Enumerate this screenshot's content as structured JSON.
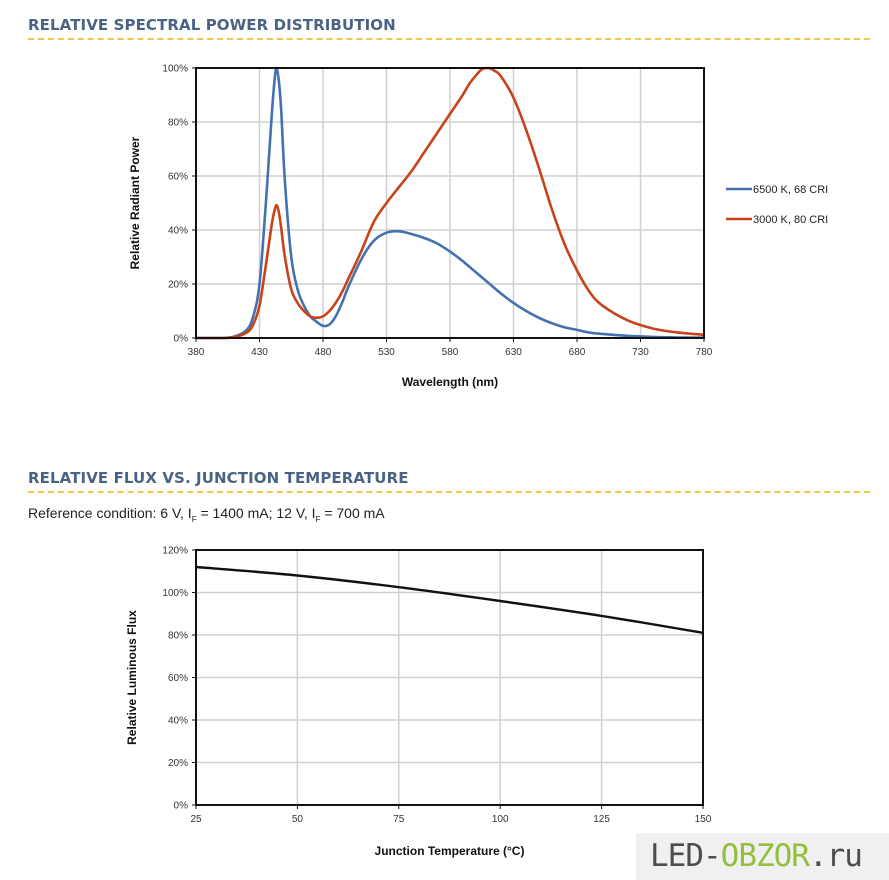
{
  "sections": {
    "spectral_title": "RELATIVE SPECTRAL POWER DISTRIBUTION",
    "flux_title": "RELATIVE FLUX VS. JUNCTION TEMPERATURE",
    "reference_condition": {
      "prefix": "Reference condition: 6 V, I",
      "sub1": "F",
      "middle": " = 1400 mA; 12 V, I",
      "sub2": "F",
      "suffix": " = 700 mA"
    }
  },
  "watermark": {
    "part1": "LED-",
    "part2": "OBZOR",
    "part3": ".ru",
    "accent_color": "#94bf3e"
  },
  "chart_data": [
    {
      "type": "line",
      "title": "RELATIVE SPECTRAL POWER DISTRIBUTION",
      "xlabel": "Wavelength (nm)",
      "ylabel": "Relative Radiant Power",
      "xlim": [
        380,
        780
      ],
      "ylim": [
        0,
        100
      ],
      "x_ticks": [
        "380",
        "430",
        "480",
        "530",
        "580",
        "630",
        "680",
        "730",
        "780"
      ],
      "y_ticks": [
        "0%",
        "20%",
        "40%",
        "60%",
        "80%",
        "100%"
      ],
      "grid": true,
      "legend_position": "right",
      "series": [
        {
          "name": "6500 K, 68 CRI",
          "color": "#4472b0",
          "x": [
            380,
            400,
            410,
            420,
            425,
            430,
            435,
            440,
            443,
            445,
            447,
            450,
            455,
            460,
            465,
            470,
            475,
            480,
            485,
            490,
            495,
            500,
            510,
            520,
            530,
            540,
            550,
            560,
            570,
            580,
            590,
            600,
            610,
            620,
            630,
            640,
            650,
            660,
            670,
            680,
            690,
            700,
            720,
            740,
            760,
            780
          ],
          "values": [
            0,
            0,
            0.5,
            3,
            8,
            20,
            50,
            85,
            100,
            96,
            85,
            58,
            30,
            18,
            12,
            8,
            6,
            4.5,
            5,
            8,
            13,
            19,
            29,
            36,
            39,
            39.5,
            38.5,
            37,
            35,
            32,
            28.5,
            24.5,
            20.5,
            16.5,
            13,
            10,
            7.5,
            5.5,
            4,
            3,
            2,
            1.5,
            0.8,
            0.4,
            0.2,
            0.1
          ]
        },
        {
          "name": "3000 K, 80 CRI",
          "color": "#c8431a",
          "x": [
            380,
            400,
            410,
            420,
            425,
            430,
            435,
            440,
            443,
            445,
            447,
            450,
            455,
            460,
            465,
            470,
            475,
            480,
            485,
            490,
            495,
            500,
            510,
            520,
            530,
            540,
            550,
            560,
            570,
            580,
            590,
            595,
            600,
            605,
            610,
            615,
            620,
            630,
            640,
            650,
            660,
            670,
            680,
            690,
            700,
            720,
            740,
            760,
            780
          ],
          "values": [
            0,
            0,
            0.3,
            2,
            5,
            12,
            27,
            43,
            49,
            47,
            41,
            30,
            18,
            13,
            10,
            8,
            7.5,
            8,
            10,
            13,
            17,
            22,
            32,
            43,
            50,
            56,
            62,
            69,
            76,
            83,
            90,
            94,
            97,
            99.5,
            100,
            99,
            97,
            89,
            77,
            63,
            48,
            35,
            25,
            17,
            12,
            6.5,
            3.5,
            2,
            1.2
          ]
        }
      ]
    },
    {
      "type": "line",
      "title": "RELATIVE FLUX VS. JUNCTION TEMPERATURE",
      "xlabel": "Junction Temperature (°C)",
      "ylabel": "Relative Luminous Flux",
      "xlim": [
        25,
        150
      ],
      "ylim": [
        0,
        120
      ],
      "x_ticks": [
        "25",
        "50",
        "75",
        "100",
        "125",
        "150"
      ],
      "y_ticks": [
        "0%",
        "20%",
        "40%",
        "60%",
        "80%",
        "100%",
        "120%"
      ],
      "grid": true,
      "series": [
        {
          "name": "Relative Luminous Flux",
          "color": "#111111",
          "x": [
            25,
            50,
            75,
            100,
            125,
            150
          ],
          "values": [
            112,
            108,
            102.5,
            96,
            89,
            81
          ]
        }
      ]
    }
  ]
}
